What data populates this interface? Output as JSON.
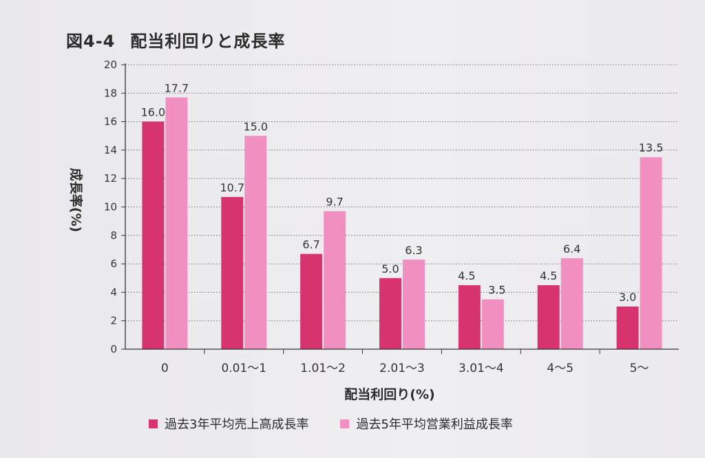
{
  "chart_data": {
    "type": "bar",
    "title_prefix": "図4-4",
    "title": "配当利回りと成長率",
    "categories": [
      "0",
      "0.01〜1",
      "1.01〜2",
      "2.01〜3",
      "3.01〜4",
      "4〜5",
      "5〜"
    ],
    "series": [
      {
        "name": "過去3年平均売上高成長率",
        "values": [
          16.0,
          10.7,
          6.7,
          5.0,
          4.5,
          4.5,
          3.0
        ],
        "labels": [
          "16.0",
          "10.7",
          "6.7",
          "5.0",
          "4.5",
          "4.5",
          "3.0"
        ],
        "color": "#d6336f"
      },
      {
        "name": "過去5年平均営業利益成長率",
        "values": [
          17.7,
          15.0,
          9.7,
          6.3,
          3.5,
          6.4,
          13.5
        ],
        "labels": [
          "17.7",
          "15.0",
          "9.7",
          "6.3",
          "3.5",
          "6.4",
          "13.5"
        ],
        "color": "#f08fc0"
      }
    ],
    "xlabel": "配当利回り(%)",
    "ylabel": "成長率(%)",
    "ylim": [
      0,
      20
    ],
    "yticks": [
      0,
      2,
      4,
      6,
      8,
      10,
      12,
      14,
      16,
      18,
      20
    ],
    "grid": true,
    "legend_position": "bottom"
  }
}
